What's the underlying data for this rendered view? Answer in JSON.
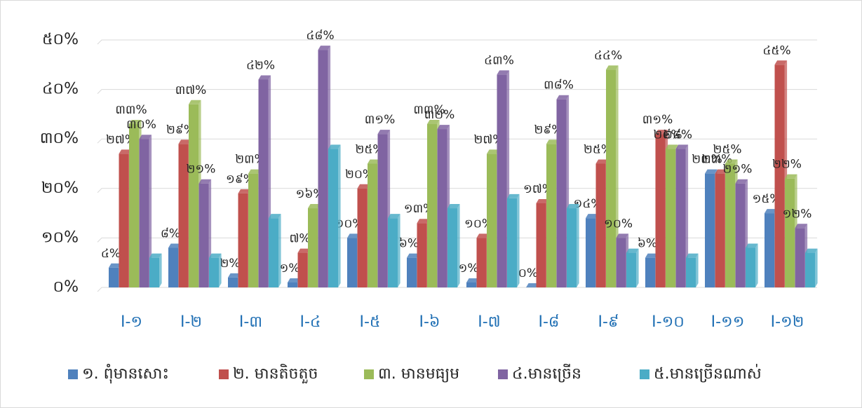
{
  "chart_data": {
    "type": "bar",
    "categories": [
      "I-១",
      "I-២",
      "I-៣",
      "I-៤",
      "I-៥",
      "I-៦",
      "I-៧",
      "I-៨",
      "I-៩",
      "I-១០",
      "I-១១",
      "I-១២"
    ],
    "series": [
      {
        "name": "១. ពុំមានសោះ",
        "color": "#4f81bd",
        "values": [
          4,
          8,
          2,
          1,
          10,
          6,
          1,
          0,
          14,
          6,
          23,
          15
        ],
        "value_labels": [
          "៤%",
          "៨%",
          "២%",
          "១%",
          "១០%",
          "៦%",
          "១%",
          "០%",
          "១៤%",
          "៦%",
          "២៣%",
          "១៥%"
        ]
      },
      {
        "name": "២. មានតិចតួច",
        "color": "#c0504d",
        "values": [
          27,
          29,
          19,
          7,
          20,
          13,
          10,
          17,
          25,
          31,
          23,
          45
        ],
        "value_labels": [
          "២៧%",
          "២៩%",
          "១៩%",
          "៧%",
          "២០%",
          "១៣%",
          "១០%",
          "១៧%",
          "២៥%",
          "៣១%",
          "២៣%",
          "៤៥%"
        ]
      },
      {
        "name": "៣. មានមធ្យម",
        "color": "#9bbb59",
        "values": [
          33,
          37,
          23,
          16,
          25,
          33,
          27,
          29,
          44,
          28,
          25,
          22
        ],
        "value_labels": [
          "៣៣%",
          "៣៧%",
          "២៣%",
          "១៦%",
          "២៥%",
          "៣៣%",
          "២៧%",
          "២៩%",
          "៤៤%",
          "២៨%",
          "២៥%",
          "២២%"
        ]
      },
      {
        "name": "៤.មានច្រើន",
        "color": "#8064a2",
        "values": [
          30,
          21,
          42,
          48,
          31,
          32,
          43,
          38,
          10,
          28,
          21,
          12
        ],
        "value_labels": [
          "៣០%",
          "២១%",
          "៤២%",
          "៤៨%",
          "៣១%",
          "៣២%",
          "៤៣%",
          "៣៨%",
          "១០%",
          "២៨%",
          "២១%",
          "១២%"
        ]
      },
      {
        "name": "៥.មានច្រើនណាស់",
        "color": "#4bacc6",
        "values": [
          6,
          6,
          14,
          28,
          14,
          16,
          18,
          16,
          7,
          6,
          8,
          7
        ]
      }
    ],
    "ylim": [
      0,
      50
    ],
    "yticks": [
      {
        "value": 0,
        "label": "០%"
      },
      {
        "value": 10,
        "label": "១០%"
      },
      {
        "value": 20,
        "label": "២០%"
      },
      {
        "value": 30,
        "label": "៣០%"
      },
      {
        "value": 40,
        "label": "៤០%"
      },
      {
        "value": 50,
        "label": "៥០%"
      }
    ],
    "grid": true,
    "legend": "bottom"
  }
}
